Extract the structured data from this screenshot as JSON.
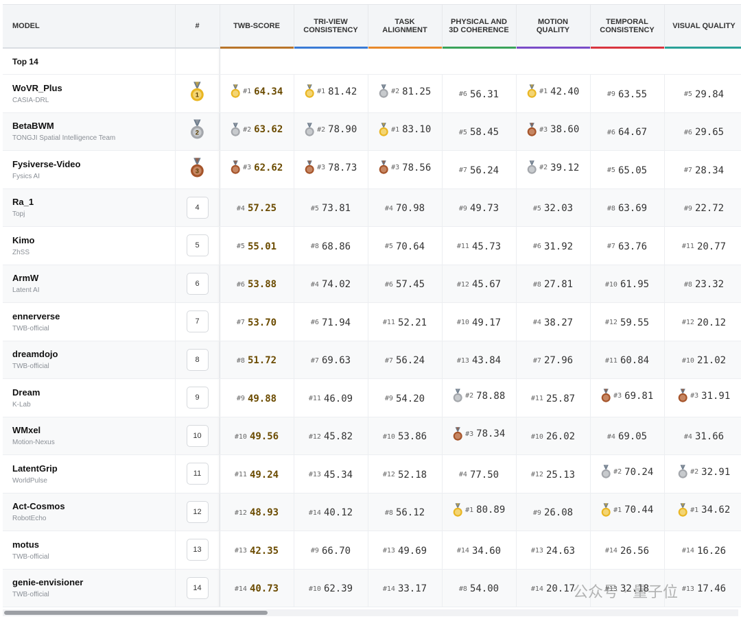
{
  "header": {
    "columns": [
      "MODEL",
      "#",
      "TWB-SCORE",
      "TRI-VIEW CONSISTENCY",
      "TASK ALIGNMENT",
      "PHYSICAL AND 3D COHERENCE",
      "MOTION QUALITY",
      "TEMPORAL CONSISTENCY",
      "VISUAL QUALITY"
    ],
    "score_colors": [
      "#b8742a",
      "#3a7bd5",
      "#e8892b",
      "#3aa35a",
      "#7a4cc8",
      "#d8353f",
      "#2aa198"
    ]
  },
  "group_label": "Top 14",
  "rows": [
    {
      "model": "WoVR_Plus",
      "org": "CASIA-DRL",
      "rank": 1,
      "scores": [
        {
          "rank": "#1",
          "value": "64.34"
        },
        {
          "rank": "#1",
          "value": "81.42"
        },
        {
          "rank": "#2",
          "value": "81.25"
        },
        {
          "rank": "#6",
          "value": "56.31"
        },
        {
          "rank": "#1",
          "value": "42.40"
        },
        {
          "rank": "#9",
          "value": "63.55"
        },
        {
          "rank": "#5",
          "value": "29.84"
        }
      ]
    },
    {
      "model": "BetaBWM",
      "org": "TONGJI Spatial Intelligence Team",
      "rank": 2,
      "scores": [
        {
          "rank": "#2",
          "value": "63.62"
        },
        {
          "rank": "#2",
          "value": "78.90"
        },
        {
          "rank": "#1",
          "value": "83.10"
        },
        {
          "rank": "#5",
          "value": "58.45"
        },
        {
          "rank": "#3",
          "value": "38.60"
        },
        {
          "rank": "#6",
          "value": "64.67"
        },
        {
          "rank": "#6",
          "value": "29.65"
        }
      ]
    },
    {
      "model": "Fysiverse-Video",
      "org": "Fysics AI",
      "rank": 3,
      "scores": [
        {
          "rank": "#3",
          "value": "62.62"
        },
        {
          "rank": "#3",
          "value": "78.73"
        },
        {
          "rank": "#3",
          "value": "78.56"
        },
        {
          "rank": "#7",
          "value": "56.24"
        },
        {
          "rank": "#2",
          "value": "39.12"
        },
        {
          "rank": "#5",
          "value": "65.05"
        },
        {
          "rank": "#7",
          "value": "28.34"
        }
      ]
    },
    {
      "model": "Ra_1",
      "org": "Topj",
      "rank": 4,
      "scores": [
        {
          "rank": "#4",
          "value": "57.25"
        },
        {
          "rank": "#5",
          "value": "73.81"
        },
        {
          "rank": "#4",
          "value": "70.98"
        },
        {
          "rank": "#9",
          "value": "49.73"
        },
        {
          "rank": "#5",
          "value": "32.03"
        },
        {
          "rank": "#8",
          "value": "63.69"
        },
        {
          "rank": "#9",
          "value": "22.72"
        }
      ]
    },
    {
      "model": "Kimo",
      "org": "ZhSS",
      "rank": 5,
      "scores": [
        {
          "rank": "#5",
          "value": "55.01"
        },
        {
          "rank": "#8",
          "value": "68.86"
        },
        {
          "rank": "#5",
          "value": "70.64"
        },
        {
          "rank": "#11",
          "value": "45.73"
        },
        {
          "rank": "#6",
          "value": "31.92"
        },
        {
          "rank": "#7",
          "value": "63.76"
        },
        {
          "rank": "#11",
          "value": "20.77"
        }
      ]
    },
    {
      "model": "ArmW",
      "org": "Latent AI",
      "rank": 6,
      "scores": [
        {
          "rank": "#6",
          "value": "53.88"
        },
        {
          "rank": "#4",
          "value": "74.02"
        },
        {
          "rank": "#6",
          "value": "57.45"
        },
        {
          "rank": "#12",
          "value": "45.67"
        },
        {
          "rank": "#8",
          "value": "27.81"
        },
        {
          "rank": "#10",
          "value": "61.95"
        },
        {
          "rank": "#8",
          "value": "23.32"
        }
      ]
    },
    {
      "model": "ennerverse",
      "org": "TWB-official",
      "rank": 7,
      "scores": [
        {
          "rank": "#7",
          "value": "53.70"
        },
        {
          "rank": "#6",
          "value": "71.94"
        },
        {
          "rank": "#11",
          "value": "52.21"
        },
        {
          "rank": "#10",
          "value": "49.17"
        },
        {
          "rank": "#4",
          "value": "38.27"
        },
        {
          "rank": "#12",
          "value": "59.55"
        },
        {
          "rank": "#12",
          "value": "20.12"
        }
      ]
    },
    {
      "model": "dreamdojo",
      "org": "TWB-official",
      "rank": 8,
      "scores": [
        {
          "rank": "#8",
          "value": "51.72"
        },
        {
          "rank": "#7",
          "value": "69.63"
        },
        {
          "rank": "#7",
          "value": "56.24"
        },
        {
          "rank": "#13",
          "value": "43.84"
        },
        {
          "rank": "#7",
          "value": "27.96"
        },
        {
          "rank": "#11",
          "value": "60.84"
        },
        {
          "rank": "#10",
          "value": "21.02"
        }
      ]
    },
    {
      "model": "Dream",
      "org": "K-Lab",
      "rank": 9,
      "scores": [
        {
          "rank": "#9",
          "value": "49.88"
        },
        {
          "rank": "#11",
          "value": "46.09"
        },
        {
          "rank": "#9",
          "value": "54.20"
        },
        {
          "rank": "#2",
          "value": "78.88"
        },
        {
          "rank": "#11",
          "value": "25.87"
        },
        {
          "rank": "#3",
          "value": "69.81"
        },
        {
          "rank": "#3",
          "value": "31.91"
        }
      ]
    },
    {
      "model": "WMxel",
      "org": "Motion-Nexus",
      "rank": 10,
      "scores": [
        {
          "rank": "#10",
          "value": "49.56"
        },
        {
          "rank": "#12",
          "value": "45.82"
        },
        {
          "rank": "#10",
          "value": "53.86"
        },
        {
          "rank": "#3",
          "value": "78.34"
        },
        {
          "rank": "#10",
          "value": "26.02"
        },
        {
          "rank": "#4",
          "value": "69.05"
        },
        {
          "rank": "#4",
          "value": "31.66"
        }
      ]
    },
    {
      "model": "LatentGrip",
      "org": "WorldPulse",
      "rank": 11,
      "scores": [
        {
          "rank": "#11",
          "value": "49.24"
        },
        {
          "rank": "#13",
          "value": "45.34"
        },
        {
          "rank": "#12",
          "value": "52.18"
        },
        {
          "rank": "#4",
          "value": "77.50"
        },
        {
          "rank": "#12",
          "value": "25.13"
        },
        {
          "rank": "#2",
          "value": "70.24"
        },
        {
          "rank": "#2",
          "value": "32.91"
        }
      ]
    },
    {
      "model": "Act-Cosmos",
      "org": "RobotEcho",
      "rank": 12,
      "scores": [
        {
          "rank": "#12",
          "value": "48.93"
        },
        {
          "rank": "#14",
          "value": "40.12"
        },
        {
          "rank": "#8",
          "value": "56.12"
        },
        {
          "rank": "#1",
          "value": "80.89"
        },
        {
          "rank": "#9",
          "value": "26.08"
        },
        {
          "rank": "#1",
          "value": "70.44"
        },
        {
          "rank": "#1",
          "value": "34.62"
        }
      ]
    },
    {
      "model": "motus",
      "org": "TWB-official",
      "rank": 13,
      "scores": [
        {
          "rank": "#13",
          "value": "42.35"
        },
        {
          "rank": "#9",
          "value": "66.70"
        },
        {
          "rank": "#13",
          "value": "49.69"
        },
        {
          "rank": "#14",
          "value": "34.60"
        },
        {
          "rank": "#13",
          "value": "24.63"
        },
        {
          "rank": "#14",
          "value": "26.56"
        },
        {
          "rank": "#14",
          "value": "16.26"
        }
      ]
    },
    {
      "model": "genie-envisioner",
      "org": "TWB-official",
      "rank": 14,
      "scores": [
        {
          "rank": "#14",
          "value": "40.73"
        },
        {
          "rank": "#10",
          "value": "62.39"
        },
        {
          "rank": "#14",
          "value": "33.17"
        },
        {
          "rank": "#8",
          "value": "54.00"
        },
        {
          "rank": "#14",
          "value": "20.17"
        },
        {
          "rank": "#13",
          "value": "32.18"
        },
        {
          "rank": "#13",
          "value": "17.46"
        }
      ]
    }
  ],
  "watermark": "公众号 · 量子位"
}
